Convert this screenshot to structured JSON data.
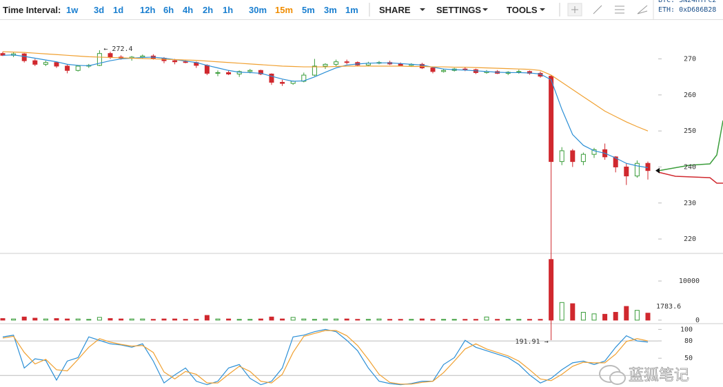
{
  "toolbar": {
    "label": "Time Interval:",
    "intervals": [
      "1w",
      "3d",
      "1d",
      "12h",
      "6h",
      "4h",
      "2h",
      "1h",
      "30m",
      "15m",
      "5m",
      "3m",
      "1m"
    ],
    "active": "15m",
    "menus": [
      "SHARE",
      "SETTINGS",
      "TOOLS"
    ],
    "donations": [
      "BTC: 3N24HTFc2",
      "ETH: 0xD686B28"
    ]
  },
  "chart_data": {
    "type": "candlestick",
    "candles": [
      [
        271.5,
        272,
        270.8,
        271
      ],
      [
        271,
        271.8,
        270.5,
        271.4
      ],
      [
        271.4,
        271.6,
        269,
        269.5
      ],
      [
        269.5,
        270,
        268,
        268.5
      ],
      [
        268.5,
        269.5,
        268,
        269
      ],
      [
        269,
        269.2,
        267.5,
        268
      ],
      [
        268,
        268.5,
        266,
        266.8
      ],
      [
        266.8,
        268.3,
        266.5,
        268
      ],
      [
        268,
        268.6,
        267.5,
        268.2
      ],
      [
        268.2,
        272.4,
        268,
        271.5
      ],
      [
        271.5,
        272,
        270,
        270.5
      ],
      [
        270.5,
        271,
        269.8,
        270.2
      ],
      [
        270.2,
        270.8,
        269.5,
        270.5
      ],
      [
        270.5,
        271.2,
        270,
        270.8
      ],
      [
        270.8,
        271.3,
        269.8,
        270.2
      ],
      [
        270.2,
        270.5,
        268.8,
        269.5
      ],
      [
        269.5,
        270,
        268.5,
        269.2
      ],
      [
        269.2,
        269.6,
        268.8,
        269
      ],
      [
        269,
        269.3,
        267.5,
        268.2
      ],
      [
        268.2,
        268.5,
        265.5,
        266
      ],
      [
        266,
        266.8,
        265.2,
        266.2
      ],
      [
        266.2,
        266.8,
        265.5,
        265.8
      ],
      [
        265.8,
        266.8,
        265,
        266.5
      ],
      [
        266.5,
        267.2,
        266,
        266.8
      ],
      [
        266.8,
        267,
        265.5,
        265.8
      ],
      [
        265.8,
        266,
        262.8,
        263.5
      ],
      [
        263.5,
        264.2,
        262.5,
        263.2
      ],
      [
        263.2,
        264,
        262.8,
        263.8
      ],
      [
        263.8,
        266.2,
        263.5,
        265.5
      ],
      [
        265.5,
        270,
        265.2,
        268
      ],
      [
        268,
        268.8,
        267.2,
        268.5
      ],
      [
        268.5,
        269.8,
        268,
        269.2
      ],
      [
        269.2,
        269.8,
        268.5,
        269
      ],
      [
        269,
        269.3,
        268,
        268.3
      ],
      [
        268.3,
        269.2,
        268,
        268.8
      ],
      [
        268.8,
        269.4,
        268.5,
        269
      ],
      [
        269,
        269.5,
        268.3,
        268.6
      ],
      [
        268.6,
        269,
        268,
        268.2
      ],
      [
        268.2,
        268.8,
        267.8,
        268.5
      ],
      [
        268.5,
        268.9,
        267.2,
        267.5
      ],
      [
        267.5,
        267.8,
        266,
        266.5
      ],
      [
        266.5,
        267.3,
        266.2,
        266.8
      ],
      [
        266.8,
        267.5,
        266.5,
        267.2
      ],
      [
        267.2,
        267.8,
        266.6,
        267
      ],
      [
        267,
        267.3,
        265.8,
        266.2
      ],
      [
        266.2,
        266.9,
        265.9,
        266.5
      ],
      [
        266.5,
        266.9,
        265.8,
        266
      ],
      [
        266,
        266.6,
        265.5,
        266.3
      ],
      [
        266.3,
        267,
        265.9,
        266.5
      ],
      [
        266.5,
        266.8,
        265.6,
        266
      ],
      [
        266,
        266.5,
        264.8,
        265.2
      ],
      [
        265.2,
        265.5,
        191.91,
        241.5
      ],
      [
        241.5,
        245.5,
        240.5,
        244.5
      ],
      [
        244.5,
        245,
        240,
        241.5
      ],
      [
        241.5,
        244,
        240.5,
        243.5
      ],
      [
        243.5,
        245.3,
        242.5,
        244.8
      ],
      [
        244.8,
        246.5,
        242,
        242.8
      ],
      [
        242.8,
        243,
        238.5,
        240
      ],
      [
        240,
        241,
        235,
        237.5
      ],
      [
        237.5,
        241.8,
        237,
        241
      ],
      [
        241,
        241.5,
        236.5,
        239
      ]
    ],
    "colors": {
      "up": "#3a9d3a",
      "down": "#d0282e"
    },
    "ylim": [
      216,
      281
    ],
    "yticks": [
      220,
      230,
      240,
      250,
      260,
      270
    ],
    "series": [
      {
        "color": "#2b8fd6",
        "values": [
          271,
          271.1,
          270.7,
          270.2,
          269.7,
          269.2,
          268.5,
          268.2,
          268.1,
          268.8,
          269.5,
          270,
          270.2,
          270.4,
          270.5,
          270.2,
          269.8,
          269.4,
          269,
          268.2,
          267.5,
          266.8,
          266.3,
          266.2,
          266,
          265.2,
          264.4,
          263.8,
          263.9,
          265,
          266.3,
          267.5,
          268.3,
          268.6,
          268.8,
          268.9,
          268.9,
          268.7,
          268.5,
          268.3,
          267.7,
          267.2,
          267,
          266.9,
          266.7,
          266.5,
          266.3,
          266.2,
          266.2,
          266.1,
          265.8,
          264.2,
          256,
          249,
          246,
          244.5,
          243.8,
          242.5,
          241,
          240.3,
          239.8
        ]
      },
      {
        "color": "#f0a030",
        "values": [
          272,
          271.9,
          271.8,
          271.6,
          271.4,
          271.2,
          271,
          270.8,
          270.6,
          270.5,
          270.4,
          270.3,
          270.2,
          270.1,
          270,
          269.9,
          269.8,
          269.7,
          269.6,
          269.4,
          269.2,
          269,
          268.8,
          268.6,
          268.4,
          268.2,
          268,
          267.9,
          267.8,
          267.8,
          267.8,
          267.9,
          268,
          268,
          268,
          268,
          268,
          268,
          267.9,
          267.9,
          267.8,
          267.8,
          267.7,
          267.7,
          267.6,
          267.5,
          267.4,
          267.3,
          267.2,
          267.1,
          266.8,
          265.5,
          263.5,
          261.5,
          259.5,
          257.5,
          255.5,
          254,
          252.5,
          251.2,
          250
        ]
      }
    ],
    "annotations": [
      "← 272.4",
      "191.91 →"
    ],
    "volume": {
      "values": [
        400,
        300,
        800,
        500,
        300,
        400,
        300,
        300,
        200,
        700,
        400,
        300,
        300,
        300,
        200,
        300,
        300,
        200,
        200,
        1200,
        300,
        300,
        200,
        200,
        300,
        800,
        300,
        700,
        300,
        200,
        300,
        300,
        300,
        200,
        200,
        300,
        200,
        200,
        200,
        300,
        200,
        200,
        200,
        200,
        200,
        800,
        200,
        200,
        200,
        200,
        200,
        15500,
        4500,
        4200,
        2000,
        1600,
        1500,
        2000,
        3500,
        2500,
        1783.6
      ],
      "ylim": [
        -900,
        16700
      ],
      "yticks": [
        0,
        10000
      ],
      "last_label": "1783.6"
    },
    "stoch": {
      "ylim": [
        0,
        110
      ],
      "yticks": [
        50,
        80,
        100
      ],
      "levels": [
        80,
        20
      ],
      "series": [
        {
          "color": "#2b8fd6",
          "values": [
            87,
            90,
            33,
            49,
            46,
            12,
            45,
            51,
            87,
            81,
            75,
            73,
            69,
            75,
            45,
            7,
            21,
            33,
            10,
            4,
            10,
            33,
            39,
            15,
            4,
            10,
            33,
            87,
            90,
            96,
            100,
            96,
            81,
            63,
            33,
            10,
            6,
            4,
            6,
            10,
            10,
            39,
            51,
            81,
            69,
            63,
            57,
            51,
            39,
            21,
            7,
            15,
            30,
            42,
            45,
            39,
            45,
            69,
            89,
            80,
            78
          ]
        },
        {
          "color": "#f0a030",
          "values": [
            85,
            88,
            60,
            40,
            48,
            30,
            28,
            48,
            69,
            84,
            78,
            74,
            71,
            72,
            60,
            26,
            14,
            27,
            22,
            7,
            7,
            22,
            36,
            27,
            10,
            7,
            22,
            60,
            88,
            93,
            98,
            98,
            89,
            72,
            48,
            22,
            8,
            5,
            5,
            8,
            10,
            25,
            45,
            66,
            75,
            66,
            60,
            54,
            45,
            30,
            14,
            11,
            22,
            36,
            43,
            42,
            42,
            57,
            79,
            84,
            80
          ]
        }
      ]
    }
  },
  "watermark": "蓝狐笔记"
}
